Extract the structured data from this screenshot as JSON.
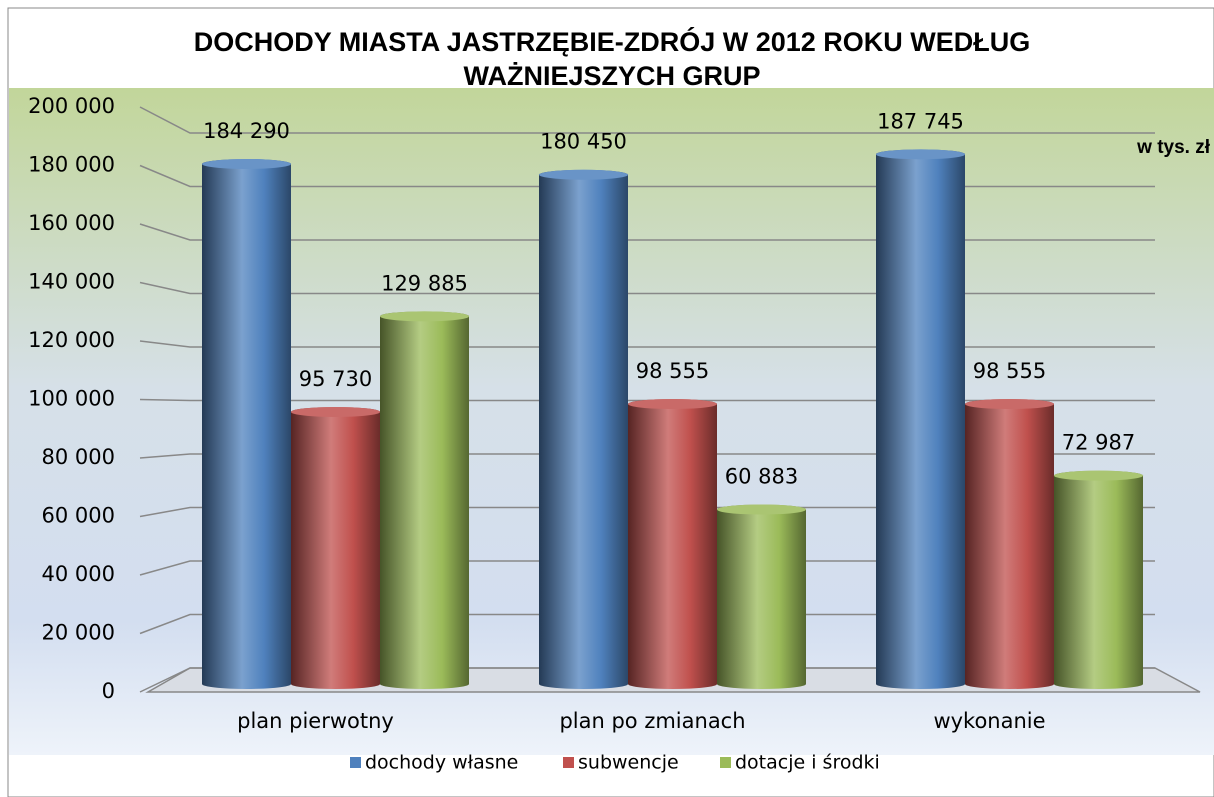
{
  "chart_data": {
    "type": "bar3d",
    "title": [
      "DOCHODY MIASTA JASTRZĘBIE-ZDRÓJ W 2012 ROKU  WEDŁUG",
      "WAŻNIEJSZYCH GRUP"
    ],
    "annotation": "w tys. zł",
    "categories": [
      "plan pierwotny",
      "plan po zmianach",
      "wykonanie"
    ],
    "series": [
      {
        "name": "dochody własne",
        "color": "#4f81bd",
        "values": [
          184290,
          180450,
          187745
        ],
        "value_labels": [
          "184 290",
          "180 450",
          "187 745"
        ]
      },
      {
        "name": "subwencje",
        "color": "#c0504d",
        "values": [
          95730,
          98555,
          98555
        ],
        "value_labels": [
          "95 730",
          "98 555",
          "98 555"
        ]
      },
      {
        "name": "dotacje i środki",
        "color": "#9bbb59",
        "values": [
          129885,
          60883,
          72987
        ],
        "value_labels": [
          "129 885",
          "60 883",
          "72 987"
        ]
      }
    ],
    "ylim": [
      0,
      200000
    ],
    "yticks": [
      0,
      {
        "value": 20000,
        "label": "20 000"
      },
      {
        "value": 40000,
        "label": "40 000"
      },
      {
        "value": 60000,
        "label": "60 000"
      },
      {
        "value": 80000,
        "label": "80 000"
      },
      {
        "value": 100000,
        "label": "100 000"
      },
      {
        "value": 120000,
        "label": "120 000"
      },
      {
        "value": 140000,
        "label": "140 000"
      },
      {
        "value": 160000,
        "label": "160 000"
      },
      {
        "value": 180000,
        "label": "180 000"
      },
      {
        "value": 200000,
        "label": "200 000"
      }
    ],
    "grid": true,
    "legend": "bottom"
  }
}
